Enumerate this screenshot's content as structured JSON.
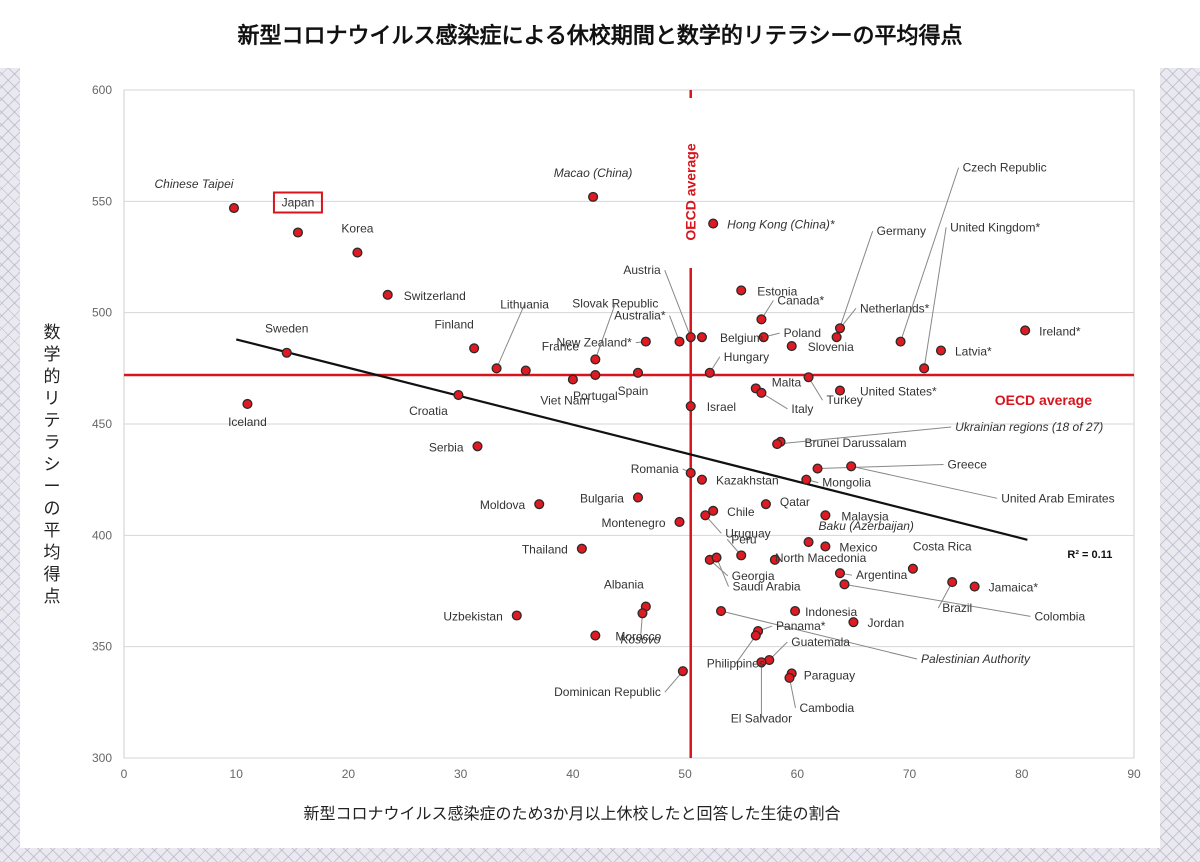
{
  "title": "新型コロナウイルス感染症による休校期間と数学的リテラシーの平均得点",
  "chart_data": {
    "type": "scatter",
    "xlabel": "新型コロナウイルス感染症のため3か月以上休校したと回答した生徒の割合",
    "ylabel": "数学的リテラシーの平均得点",
    "xlim": [
      0,
      90
    ],
    "ylim": [
      300,
      600
    ],
    "xticks": [
      0,
      10,
      20,
      30,
      40,
      50,
      60,
      70,
      80,
      90
    ],
    "yticks": [
      300,
      350,
      400,
      450,
      500,
      550,
      600
    ],
    "grid": "horizontal",
    "oecd_average": {
      "x": 50.5,
      "y": 472,
      "label": "OECD average"
    },
    "trendline": {
      "x1": 10,
      "y1": 488,
      "x2": 80.5,
      "y2": 398,
      "r2_label": "R² = 0.11"
    },
    "points": [
      {
        "name": "Chinese Taipei",
        "x": 9.8,
        "y": 547
      },
      {
        "name": "Japan",
        "x": 15.5,
        "y": 536
      },
      {
        "name": "Korea",
        "x": 20.8,
        "y": 527
      },
      {
        "name": "Switzerland",
        "x": 23.5,
        "y": 508
      },
      {
        "name": "Sweden",
        "x": 14.5,
        "y": 482
      },
      {
        "name": "Iceland",
        "x": 11,
        "y": 459
      },
      {
        "name": "Finland",
        "x": 31.2,
        "y": 484
      },
      {
        "name": "Lithuania",
        "x": 33.2,
        "y": 475
      },
      {
        "name": "France",
        "x": 35.8,
        "y": 474
      },
      {
        "name": "Croatia",
        "x": 29.8,
        "y": 463
      },
      {
        "name": "Serbia",
        "x": 31.5,
        "y": 440
      },
      {
        "name": "Moldova",
        "x": 37,
        "y": 414
      },
      {
        "name": "Thailand",
        "x": 40.8,
        "y": 394
      },
      {
        "name": "Uzbekistan",
        "x": 35,
        "y": 364
      },
      {
        "name": "Macao (China)",
        "x": 41.8,
        "y": 552
      },
      {
        "name": "New Zealand*",
        "x": 46.5,
        "y": 487
      },
      {
        "name": "Australia*",
        "x": 49.5,
        "y": 487
      },
      {
        "name": "Austria",
        "x": 50.5,
        "y": 489
      },
      {
        "name": "Viet Nam",
        "x": 40,
        "y": 470
      },
      {
        "name": "Portugal",
        "x": 42,
        "y": 472
      },
      {
        "name": "Spain",
        "x": 45.8,
        "y": 473
      },
      {
        "name": "Slovak Republic",
        "x": 42,
        "y": 479
      },
      {
        "name": "Bulgaria",
        "x": 45.8,
        "y": 417
      },
      {
        "name": "Montenegro",
        "x": 49.5,
        "y": 406
      },
      {
        "name": "Albania",
        "x": 46.5,
        "y": 368
      },
      {
        "name": "Morocco",
        "x": 42,
        "y": 355
      },
      {
        "name": "Kosovo",
        "x": 46.2,
        "y": 365
      },
      {
        "name": "Dominican Republic",
        "x": 49.8,
        "y": 339
      },
      {
        "name": "Hong Kong (China)*",
        "x": 52.5,
        "y": 540
      },
      {
        "name": "Estonia",
        "x": 55,
        "y": 510
      },
      {
        "name": "Canada*",
        "x": 56.8,
        "y": 497
      },
      {
        "name": "Belgium",
        "x": 51.5,
        "y": 489
      },
      {
        "name": "Poland",
        "x": 57,
        "y": 489
      },
      {
        "name": "Slovenia",
        "x": 59.5,
        "y": 485
      },
      {
        "name": "Hungary",
        "x": 52.2,
        "y": 473
      },
      {
        "name": "Israel",
        "x": 50.5,
        "y": 458
      },
      {
        "name": "Malta",
        "x": 56.3,
        "y": 466
      },
      {
        "name": "Italy",
        "x": 56.8,
        "y": 464
      },
      {
        "name": "Turkey",
        "x": 61,
        "y": 471
      },
      {
        "name": "United States*",
        "x": 63.8,
        "y": 465
      },
      {
        "name": "Netherlands*",
        "x": 63.8,
        "y": 493
      },
      {
        "name": "Czech Republic",
        "x": 69.2,
        "y": 487
      },
      {
        "name": "United Kingdom*",
        "x": 71.3,
        "y": 475
      },
      {
        "name": "Germany",
        "x": 63.5,
        "y": 489
      },
      {
        "name": "Latvia*",
        "x": 72.8,
        "y": 483
      },
      {
        "name": "Ireland*",
        "x": 80.3,
        "y": 492
      },
      {
        "name": "Brunei Darussalam",
        "x": 58.5,
        "y": 442
      },
      {
        "name": "Ukrainian regions (18 of 27)",
        "x": 58.2,
        "y": 441
      },
      {
        "name": "Greece",
        "x": 61.8,
        "y": 430
      },
      {
        "name": "United Arab Emirates",
        "x": 64.8,
        "y": 431
      },
      {
        "name": "Romania",
        "x": 50.5,
        "y": 428
      },
      {
        "name": "Kazakhstan",
        "x": 51.5,
        "y": 425
      },
      {
        "name": "Mongolia",
        "x": 60.8,
        "y": 425
      },
      {
        "name": "Chile",
        "x": 52.5,
        "y": 411
      },
      {
        "name": "Uruguay",
        "x": 51.8,
        "y": 409
      },
      {
        "name": "Qatar",
        "x": 57.2,
        "y": 414
      },
      {
        "name": "Malaysia",
        "x": 62.5,
        "y": 409
      },
      {
        "name": "Baku (Azerbaijan)",
        "x": 61,
        "y": 397
      },
      {
        "name": "Mexico",
        "x": 62.5,
        "y": 395
      },
      {
        "name": "Peru",
        "x": 55,
        "y": 391
      },
      {
        "name": "Georgia",
        "x": 52.2,
        "y": 389
      },
      {
        "name": "Saudi Arabia",
        "x": 52.8,
        "y": 390
      },
      {
        "name": "North Macedonia",
        "x": 58,
        "y": 389
      },
      {
        "name": "Costa Rica",
        "x": 70.3,
        "y": 385
      },
      {
        "name": "Argentina",
        "x": 63.8,
        "y": 383
      },
      {
        "name": "Colombia",
        "x": 64.2,
        "y": 378
      },
      {
        "name": "Brazil",
        "x": 73.8,
        "y": 379
      },
      {
        "name": "Jamaica*",
        "x": 75.8,
        "y": 377
      },
      {
        "name": "Indonesia",
        "x": 59.8,
        "y": 366
      },
      {
        "name": "Jordan",
        "x": 65,
        "y": 361
      },
      {
        "name": "Palestinian Authority",
        "x": 53.2,
        "y": 366
      },
      {
        "name": "Panama*",
        "x": 56.5,
        "y": 357
      },
      {
        "name": "Philippines",
        "x": 56.3,
        "y": 355
      },
      {
        "name": "Guatemala",
        "x": 57.5,
        "y": 344
      },
      {
        "name": "El Salvador",
        "x": 56.8,
        "y": 343
      },
      {
        "name": "Paraguay",
        "x": 59.5,
        "y": 338
      },
      {
        "name": "Cambodia",
        "x": 59.3,
        "y": 336
      }
    ]
  }
}
